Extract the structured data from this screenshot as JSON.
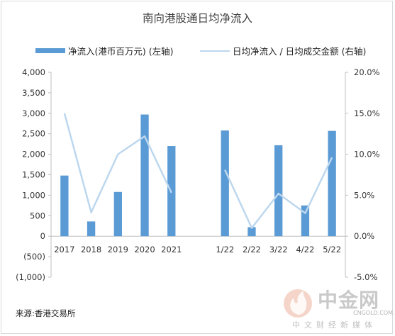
{
  "chart_data": {
    "type": "bar+line",
    "title": "南向港股通日均净流入",
    "categories": [
      "2017",
      "2018",
      "2019",
      "2020",
      "2021",
      "1/22",
      "2/22",
      "3/22",
      "4/22",
      "5/22"
    ],
    "category_gap_after": "2021",
    "series": [
      {
        "name": "净流入(港币百万元) (左轴)",
        "type": "bar",
        "axis": "left",
        "color": "#5b9bd5",
        "values": [
          1480,
          360,
          1080,
          2970,
          2200,
          2580,
          220,
          2220,
          750,
          2570
        ]
      },
      {
        "name": "日均净流入 / 日均成交金额 (右轴)",
        "type": "line",
        "axis": "right",
        "color": "#bdd7ee",
        "values": [
          0.15,
          0.029,
          0.1,
          0.122,
          0.053,
          0.081,
          0.01,
          0.052,
          0.028,
          0.096
        ]
      }
    ],
    "left_axis": {
      "ylim": [
        -1000,
        4000
      ],
      "ticks": [
        4000,
        3500,
        3000,
        2500,
        2000,
        1500,
        1000,
        500,
        0,
        -500,
        -1000
      ],
      "tick_labels": [
        "4,000",
        "3,500",
        "3,000",
        "2,500",
        "2,000",
        "1,500",
        "1,000",
        "500",
        "0",
        "(500)",
        "(1,000)"
      ]
    },
    "right_axis": {
      "ylim": [
        -0.05,
        0.2
      ],
      "ticks": [
        0.2,
        0.15,
        0.1,
        0.05,
        0.0,
        -0.05
      ],
      "tick_labels": [
        "20.0%",
        "15.0%",
        "10.0%",
        "5.0%",
        "0.0%",
        "-5.0%"
      ]
    },
    "grid": false,
    "legend_position": "top"
  },
  "source_note": "来源:香港交易所",
  "watermark": {
    "name": "中金网",
    "domain": "CNGOLD.COM.CN",
    "tagline": "中文财经新媒体"
  }
}
